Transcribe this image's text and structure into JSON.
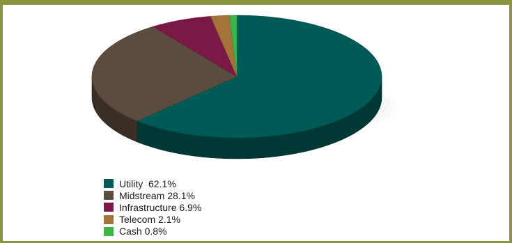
{
  "chart_data": {
    "type": "pie",
    "three_d": true,
    "title": "",
    "slices": [
      {
        "label": "Utility",
        "value": 62.1,
        "legend_text": "Utility  62.1%",
        "color": "#005a55"
      },
      {
        "label": "Midstream",
        "value": 28.1,
        "legend_text": "Midstream 28.1%",
        "color": "#5c4b3f"
      },
      {
        "label": "Infrastructure",
        "value": 6.9,
        "legend_text": "Infrastructure 6.9%",
        "color": "#7b1846"
      },
      {
        "label": "Telecom",
        "value": 2.1,
        "legend_text": "Telecom 2.1%",
        "color": "#a4733c"
      },
      {
        "label": "Cash",
        "value": 0.8,
        "legend_text": "Cash 0.8%",
        "color": "#3bb54a"
      }
    ],
    "legend_position": "bottom-left"
  },
  "frame_color": "#8c9440"
}
